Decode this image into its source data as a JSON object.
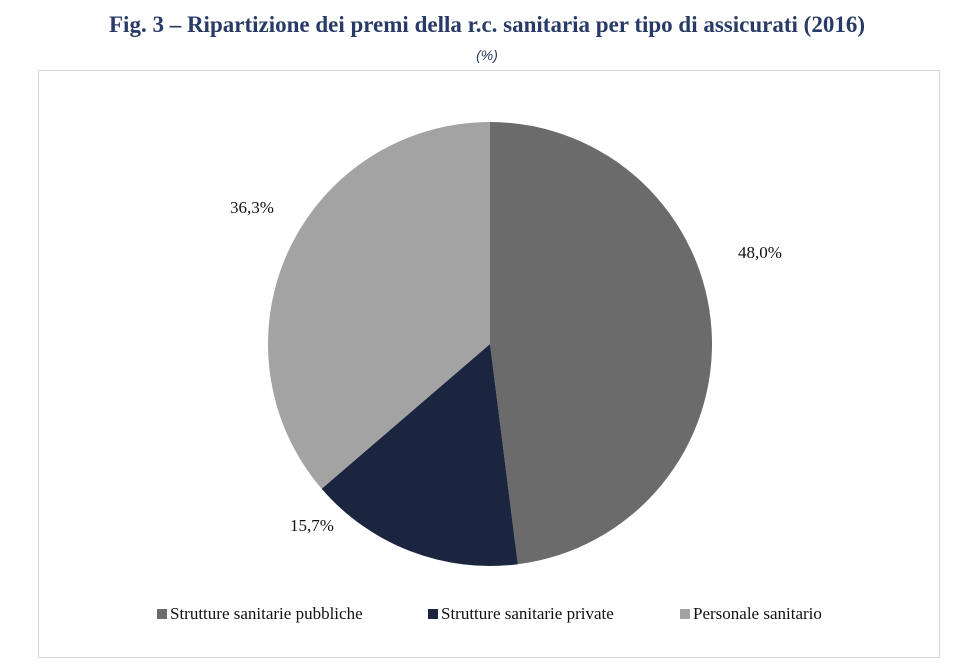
{
  "header": {
    "title": "Fig. 3 – Ripartizione dei premi della r.c. sanitaria per tipo di assicurati (2016)",
    "subtitle": "(%)"
  },
  "chart_data": {
    "type": "pie",
    "title": "Fig. 3 – Ripartizione dei premi della r.c. sanitaria per tipo di assicurati (2016)",
    "subtitle": "(%)",
    "categories": [
      "Strutture sanitarie pubbliche",
      "Strutture sanitarie private",
      "Personale sanitario"
    ],
    "values": [
      48.0,
      15.7,
      36.3
    ],
    "data_labels": [
      "48,0%",
      "15,7%",
      "36,3%"
    ],
    "colors": [
      "#6b6b6b",
      "#1c2540",
      "#a3a3a3"
    ],
    "legend_position": "bottom"
  }
}
